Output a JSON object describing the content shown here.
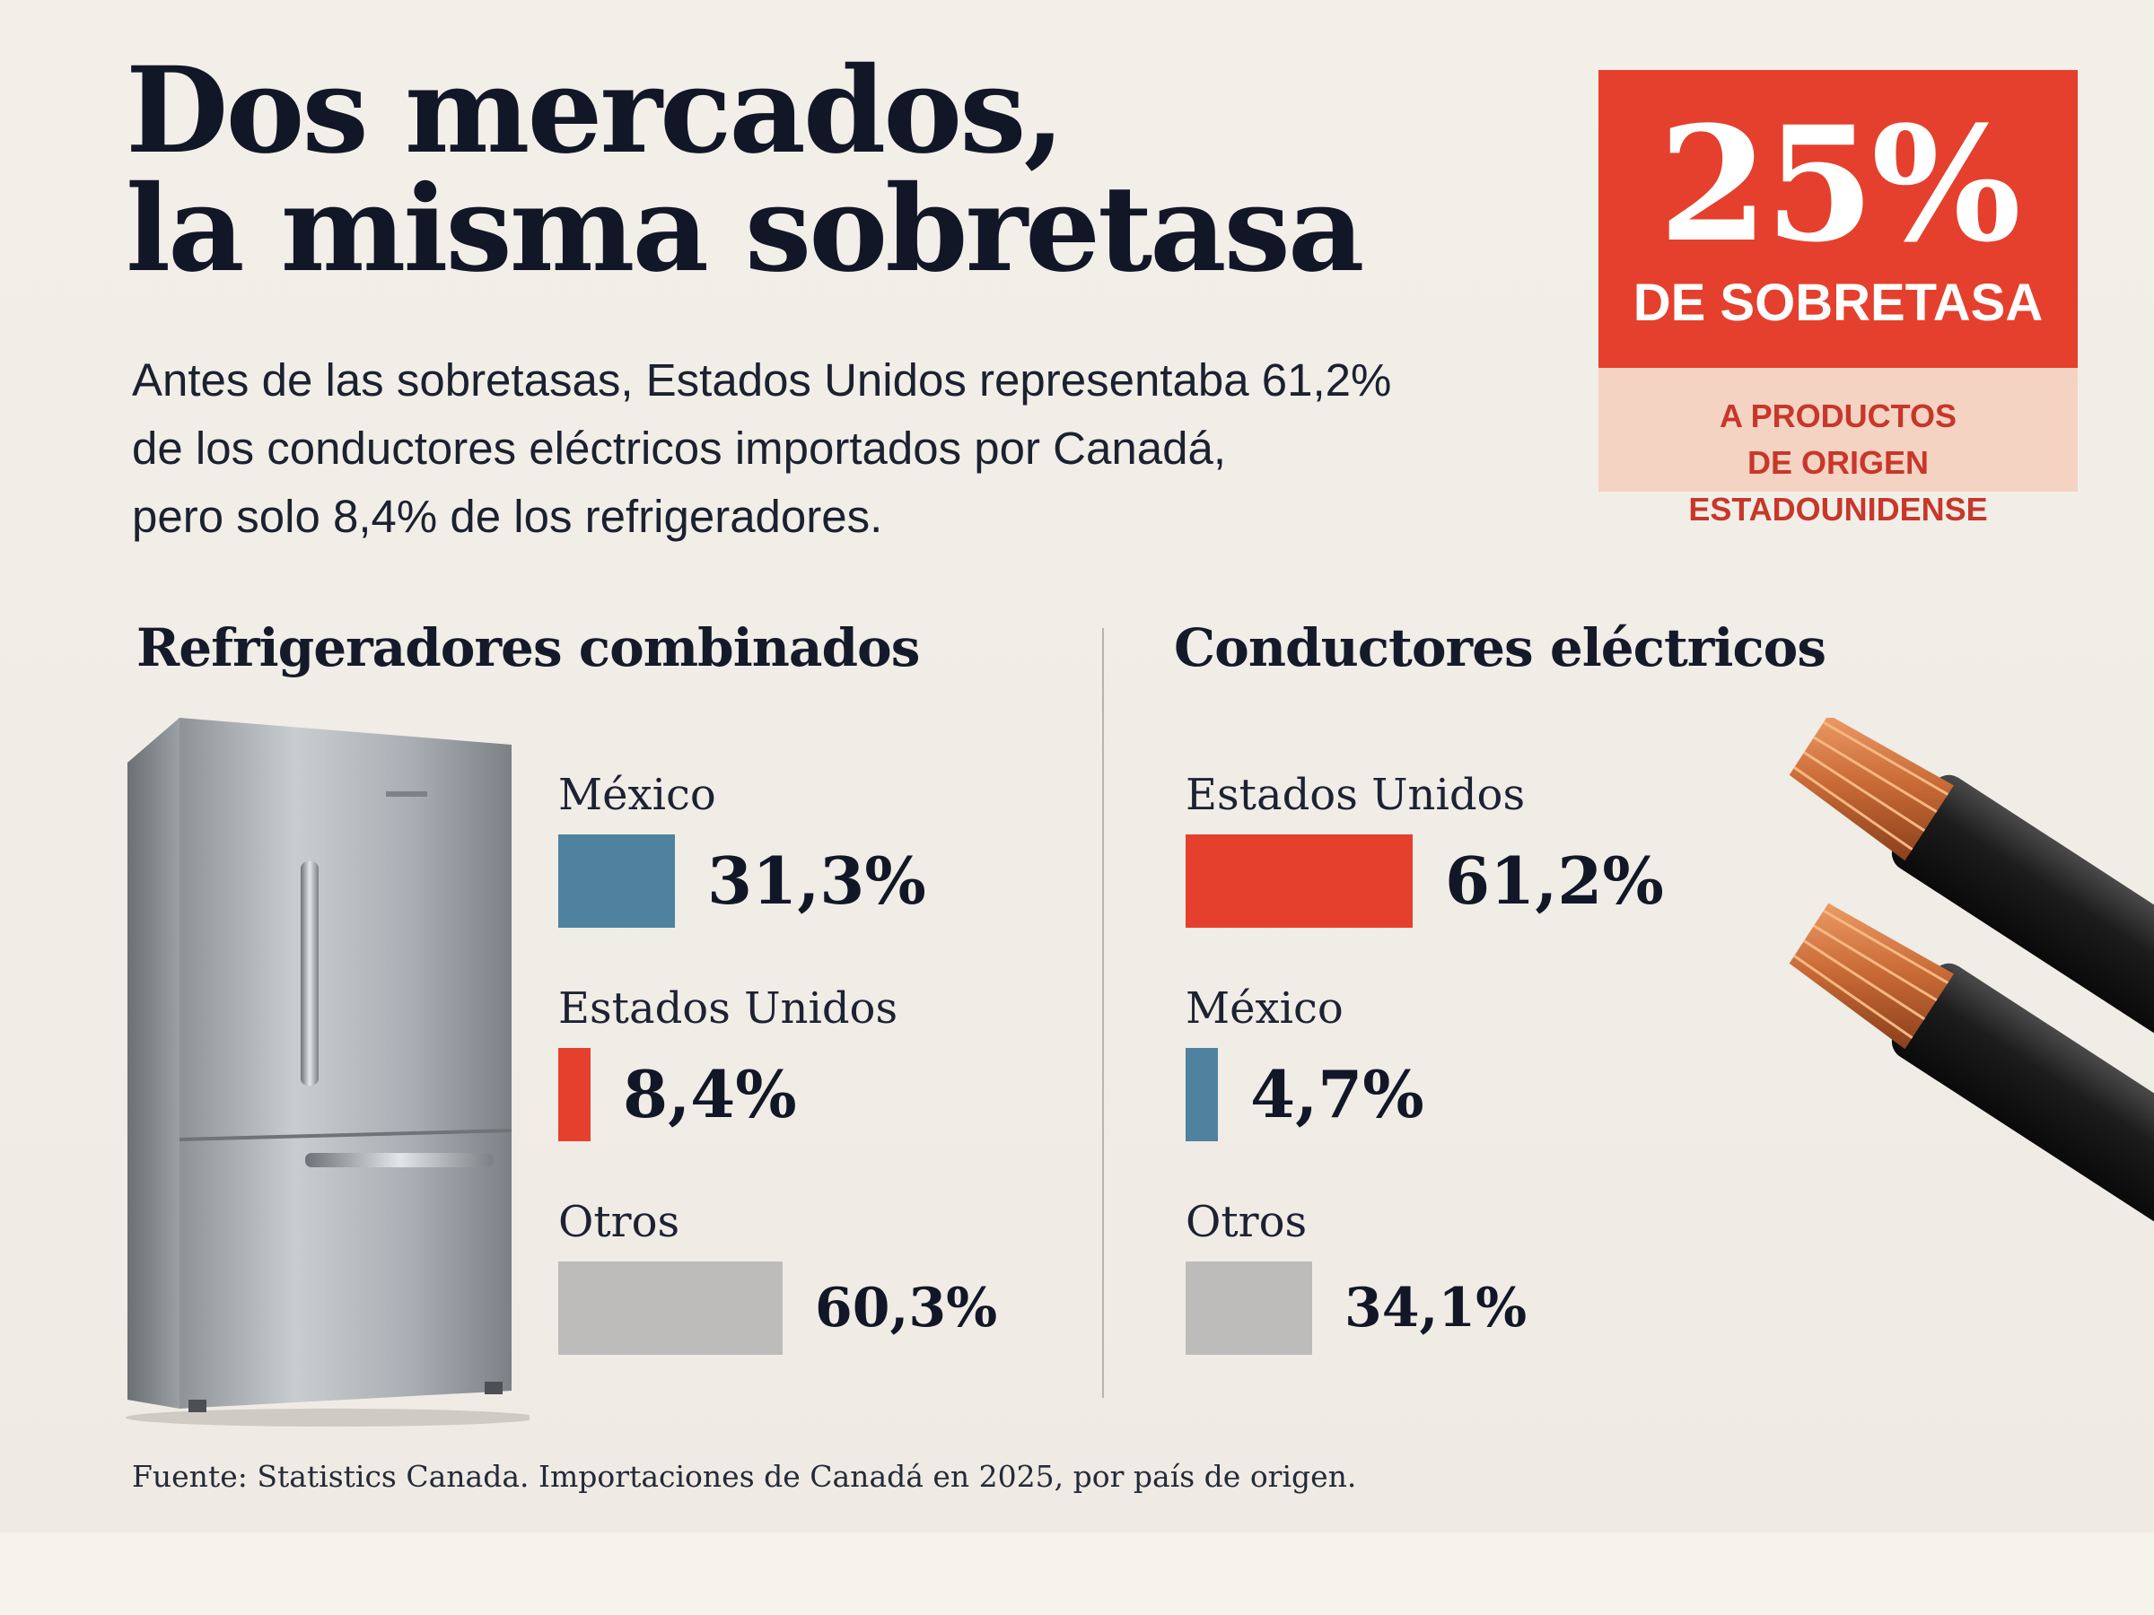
{
  "headline": {
    "line1": "Dos mercados,",
    "line2": "la misma sobretasa"
  },
  "intro": {
    "line1": "Antes de las sobretasas, Estados Unidos representaba 61,2%",
    "line2": "de los conductores eléctricos importados por Canadá,",
    "line3": "pero solo 8,4% de los refrigeradores."
  },
  "badge": {
    "value": "25%",
    "label": "DE SOBRETASA",
    "note_line1": "A PRODUCTOS",
    "note_line2": "DE ORIGEN ESTADOUNIDENSE"
  },
  "source": "Fuente: Statistics Canada. Importaciones de Canadá en 2025, por país de origen.",
  "colors": {
    "red": "#e5402d",
    "blue": "#4f829e",
    "gray": "#bdbcba"
  },
  "chart_data": [
    {
      "type": "bar",
      "title": "Refrigeradores combinados",
      "unit": "%",
      "categories": [
        "México",
        "Estados Unidos",
        "Otros"
      ],
      "values": [
        31.3,
        8.4,
        60.3
      ],
      "value_labels": [
        "31,3%",
        "8,4%",
        "60,3%"
      ],
      "colors": [
        "#4f829e",
        "#e5402d",
        "#bdbcba"
      ]
    },
    {
      "type": "bar",
      "title": "Conductores eléctricos",
      "unit": "%",
      "categories": [
        "Estados Unidos",
        "México",
        "Otros"
      ],
      "values": [
        61.2,
        4.7,
        34.1
      ],
      "value_labels": [
        "61,2%",
        "4,7%",
        "34,1%"
      ],
      "colors": [
        "#e5402d",
        "#4f829e",
        "#bdbcba"
      ]
    }
  ]
}
